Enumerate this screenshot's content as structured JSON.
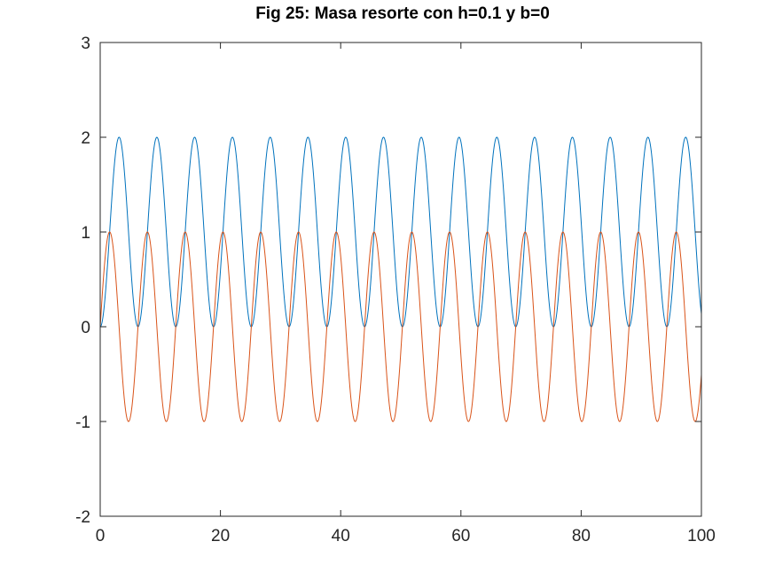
{
  "chart_data": {
    "type": "line",
    "title": "Fig 25: Masa resorte con h=0.1 y b=0",
    "xlabel": "",
    "ylabel": "",
    "xlim": [
      0,
      100
    ],
    "ylim": [
      -2,
      3
    ],
    "x_ticks": [
      0,
      20,
      40,
      60,
      80,
      100
    ],
    "y_ticks": [
      -2,
      -1,
      0,
      1,
      2,
      3
    ],
    "x_tick_labels": [
      "0",
      "20",
      "40",
      "60",
      "80",
      "100"
    ],
    "y_tick_labels": [
      "-2",
      "-1",
      "0",
      "1",
      "2",
      "3"
    ],
    "grid": false,
    "legend": "none",
    "series": [
      {
        "color": "#0072bd",
        "formula": "1 - cos(t)",
        "x_range": [
          0,
          100
        ],
        "min": 0,
        "max": 2,
        "period": 6.283
      },
      {
        "color": "#d95319",
        "formula": "sin(t)",
        "x_range": [
          0,
          100
        ],
        "min": -1,
        "max": 1,
        "period": 6.283
      }
    ]
  }
}
